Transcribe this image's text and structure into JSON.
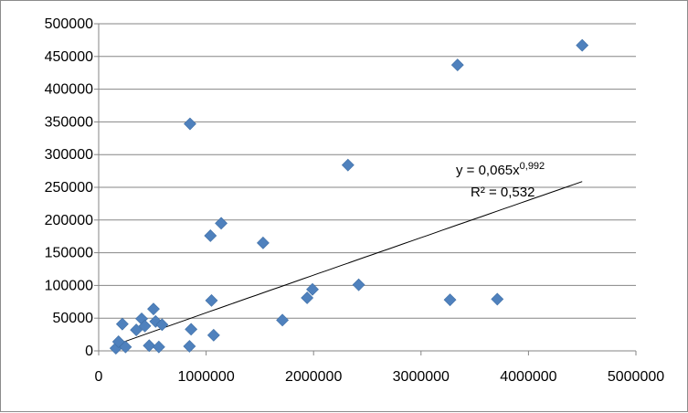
{
  "chart_data": {
    "type": "scatter",
    "title": "",
    "xlabel": "",
    "ylabel": "",
    "xlim": [
      0,
      5000000
    ],
    "ylim": [
      0,
      500000
    ],
    "x_ticks": [
      0,
      1000000,
      2000000,
      3000000,
      4000000,
      5000000
    ],
    "y_ticks": [
      0,
      50000,
      100000,
      150000,
      200000,
      250000,
      300000,
      350000,
      400000,
      450000,
      500000
    ],
    "x_tick_labels": [
      "0",
      "1000000",
      "2000000",
      "3000000",
      "4000000",
      "5000000"
    ],
    "y_tick_labels": [
      "0",
      "50000",
      "100000",
      "150000",
      "200000",
      "250000",
      "300000",
      "350000",
      "400000",
      "450000",
      "500000"
    ],
    "grid": {
      "horizontal": true,
      "vertical": false
    },
    "legend": "none",
    "marker_color": "#4f81bd",
    "marker_shape": "diamond",
    "series": [
      {
        "points": [
          {
            "x": 160000,
            "y": 4000
          },
          {
            "x": 185000,
            "y": 14000
          },
          {
            "x": 220000,
            "y": 41000
          },
          {
            "x": 250000,
            "y": 6000
          },
          {
            "x": 350000,
            "y": 32000
          },
          {
            "x": 400000,
            "y": 49000
          },
          {
            "x": 430000,
            "y": 38000
          },
          {
            "x": 470000,
            "y": 8000
          },
          {
            "x": 510000,
            "y": 64000
          },
          {
            "x": 530000,
            "y": 45000
          },
          {
            "x": 560000,
            "y": 6000
          },
          {
            "x": 590000,
            "y": 40000
          },
          {
            "x": 845000,
            "y": 7000
          },
          {
            "x": 850000,
            "y": 347000
          },
          {
            "x": 860000,
            "y": 33000
          },
          {
            "x": 1040000,
            "y": 176000
          },
          {
            "x": 1050000,
            "y": 77000
          },
          {
            "x": 1070000,
            "y": 24000
          },
          {
            "x": 1140000,
            "y": 195000
          },
          {
            "x": 1530000,
            "y": 165000
          },
          {
            "x": 1710000,
            "y": 47000
          },
          {
            "x": 1940000,
            "y": 81000
          },
          {
            "x": 1990000,
            "y": 94000
          },
          {
            "x": 2320000,
            "y": 284000
          },
          {
            "x": 2420000,
            "y": 101000
          },
          {
            "x": 3270000,
            "y": 78000
          },
          {
            "x": 3340000,
            "y": 437000
          },
          {
            "x": 3710000,
            "y": 79000
          },
          {
            "x": 4500000,
            "y": 467000
          }
        ]
      }
    ],
    "trendline": {
      "type": "power",
      "a": 0.065,
      "b": 0.992,
      "x_from": 170000,
      "x_to": 4500000,
      "color": "#000000",
      "equation_label": "y = 0,065x",
      "equation_exponent": "0,992",
      "r2_label": "R² = 0,532"
    }
  }
}
